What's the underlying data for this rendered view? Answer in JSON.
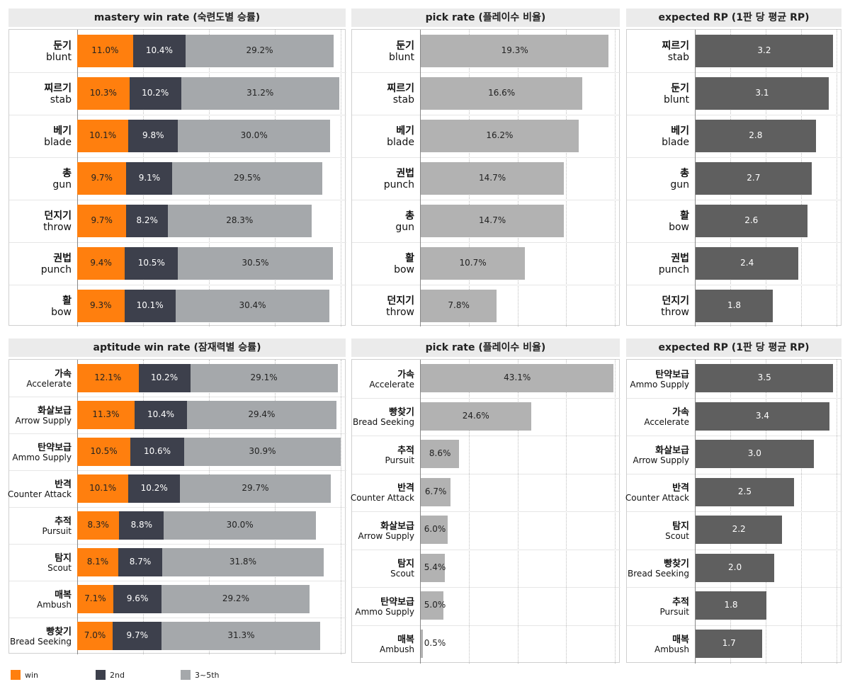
{
  "colors": {
    "win": "#ff7f0e",
    "second": "#3d404c",
    "rest": "#a5a8ab",
    "pick": "#b2b2b2",
    "rp": "#5f5f5f"
  },
  "legend": [
    {
      "key": "win",
      "label": "win"
    },
    {
      "key": "second",
      "label": "2nd"
    },
    {
      "key": "rest",
      "label": "3~5th"
    }
  ],
  "chart_data": [
    {
      "type": "bar",
      "stacked": true,
      "orientation": "horizontal",
      "title": "mastery win rate (숙련도별 승률)",
      "xlim": [
        0,
        52
      ],
      "categories": [
        {
          "ko": "둔기",
          "en": "blunt"
        },
        {
          "ko": "찌르기",
          "en": "stab"
        },
        {
          "ko": "베기",
          "en": "blade"
        },
        {
          "ko": "총",
          "en": "gun"
        },
        {
          "ko": "던지기",
          "en": "throw"
        },
        {
          "ko": "권법",
          "en": "punch"
        },
        {
          "ko": "활",
          "en": "bow"
        }
      ],
      "series": [
        {
          "name": "win",
          "key": "win",
          "values": [
            11.0,
            10.3,
            10.1,
            9.7,
            9.7,
            9.4,
            9.3
          ]
        },
        {
          "name": "2nd",
          "key": "second",
          "values": [
            10.4,
            10.2,
            9.8,
            9.1,
            8.2,
            10.5,
            10.1
          ]
        },
        {
          "name": "3~5th",
          "key": "rest",
          "values": [
            29.2,
            31.2,
            30.0,
            29.5,
            28.3,
            30.5,
            30.4
          ]
        }
      ]
    },
    {
      "type": "bar",
      "orientation": "horizontal",
      "title": "pick rate (플레이수 비율)",
      "xlim": [
        0,
        20
      ],
      "categories": [
        {
          "ko": "둔기",
          "en": "blunt"
        },
        {
          "ko": "찌르기",
          "en": "stab"
        },
        {
          "ko": "베기",
          "en": "blade"
        },
        {
          "ko": "권법",
          "en": "punch"
        },
        {
          "ko": "총",
          "en": "gun"
        },
        {
          "ko": "활",
          "en": "bow"
        },
        {
          "ko": "던지기",
          "en": "throw"
        }
      ],
      "values": [
        19.3,
        16.6,
        16.2,
        14.7,
        14.7,
        10.7,
        7.8
      ],
      "unit": "%",
      "decimals": 1,
      "color": "pick"
    },
    {
      "type": "bar",
      "orientation": "horizontal",
      "title": "expected RP (1판 당 평균 RP)",
      "xlim": [
        0,
        3.3
      ],
      "categories": [
        {
          "ko": "찌르기",
          "en": "stab"
        },
        {
          "ko": "둔기",
          "en": "blunt"
        },
        {
          "ko": "베기",
          "en": "blade"
        },
        {
          "ko": "총",
          "en": "gun"
        },
        {
          "ko": "활",
          "en": "bow"
        },
        {
          "ko": "권법",
          "en": "punch"
        },
        {
          "ko": "던지기",
          "en": "throw"
        }
      ],
      "values": [
        3.2,
        3.1,
        2.8,
        2.7,
        2.6,
        2.4,
        1.8
      ],
      "unit": "",
      "decimals": 1,
      "color": "rp"
    },
    {
      "type": "bar",
      "stacked": true,
      "orientation": "horizontal",
      "title": "aptitude win rate (잠재력별 승률)",
      "xlim": [
        0,
        52
      ],
      "categories": [
        {
          "ko": "가속",
          "en": "Accelerate"
        },
        {
          "ko": "화살보급",
          "en": "Arrow Supply"
        },
        {
          "ko": "탄약보급",
          "en": "Ammo Supply"
        },
        {
          "ko": "반격",
          "en": "Counter Attack"
        },
        {
          "ko": "추적",
          "en": "Pursuit"
        },
        {
          "ko": "탐지",
          "en": "Scout"
        },
        {
          "ko": "매복",
          "en": "Ambush"
        },
        {
          "ko": "빵찾기",
          "en": "Bread Seeking"
        }
      ],
      "series": [
        {
          "name": "win",
          "key": "win",
          "values": [
            12.1,
            11.3,
            10.5,
            10.1,
            8.3,
            8.1,
            7.1,
            7.0
          ]
        },
        {
          "name": "2nd",
          "key": "second",
          "values": [
            10.2,
            10.4,
            10.6,
            10.2,
            8.8,
            8.7,
            9.6,
            9.7
          ]
        },
        {
          "name": "3~5th",
          "key": "rest",
          "values": [
            29.1,
            29.4,
            30.9,
            29.7,
            30.0,
            31.8,
            29.2,
            31.3
          ]
        }
      ]
    },
    {
      "type": "bar",
      "orientation": "horizontal",
      "title": "pick rate (플레이수 비율)",
      "xlim": [
        0,
        43.5
      ],
      "categories": [
        {
          "ko": "가속",
          "en": "Accelerate"
        },
        {
          "ko": "빵찾기",
          "en": "Bread Seeking"
        },
        {
          "ko": "추적",
          "en": "Pursuit"
        },
        {
          "ko": "반격",
          "en": "Counter Attack"
        },
        {
          "ko": "화살보급",
          "en": "Arrow Supply"
        },
        {
          "ko": "탐지",
          "en": "Scout"
        },
        {
          "ko": "탄약보급",
          "en": "Ammo Supply"
        },
        {
          "ko": "매복",
          "en": "Ambush"
        }
      ],
      "values": [
        43.1,
        24.6,
        8.6,
        6.7,
        6.0,
        5.4,
        5.0,
        0.5
      ],
      "unit": "%",
      "decimals": 1,
      "color": "pick"
    },
    {
      "type": "bar",
      "orientation": "horizontal",
      "title": "expected RP (1판 당 평균 RP)",
      "xlim": [
        0,
        3.6
      ],
      "categories": [
        {
          "ko": "탄약보급",
          "en": "Ammo Supply"
        },
        {
          "ko": "가속",
          "en": "Accelerate"
        },
        {
          "ko": "화살보급",
          "en": "Arrow Supply"
        },
        {
          "ko": "반격",
          "en": "Counter Attack"
        },
        {
          "ko": "탐지",
          "en": "Scout"
        },
        {
          "ko": "빵찾기",
          "en": "Bread Seeking"
        },
        {
          "ko": "추적",
          "en": "Pursuit"
        },
        {
          "ko": "매복",
          "en": "Ambush"
        }
      ],
      "values": [
        3.5,
        3.4,
        3.0,
        2.5,
        2.2,
        2.0,
        1.8,
        1.7
      ],
      "unit": "",
      "decimals": 1,
      "color": "rp"
    }
  ]
}
